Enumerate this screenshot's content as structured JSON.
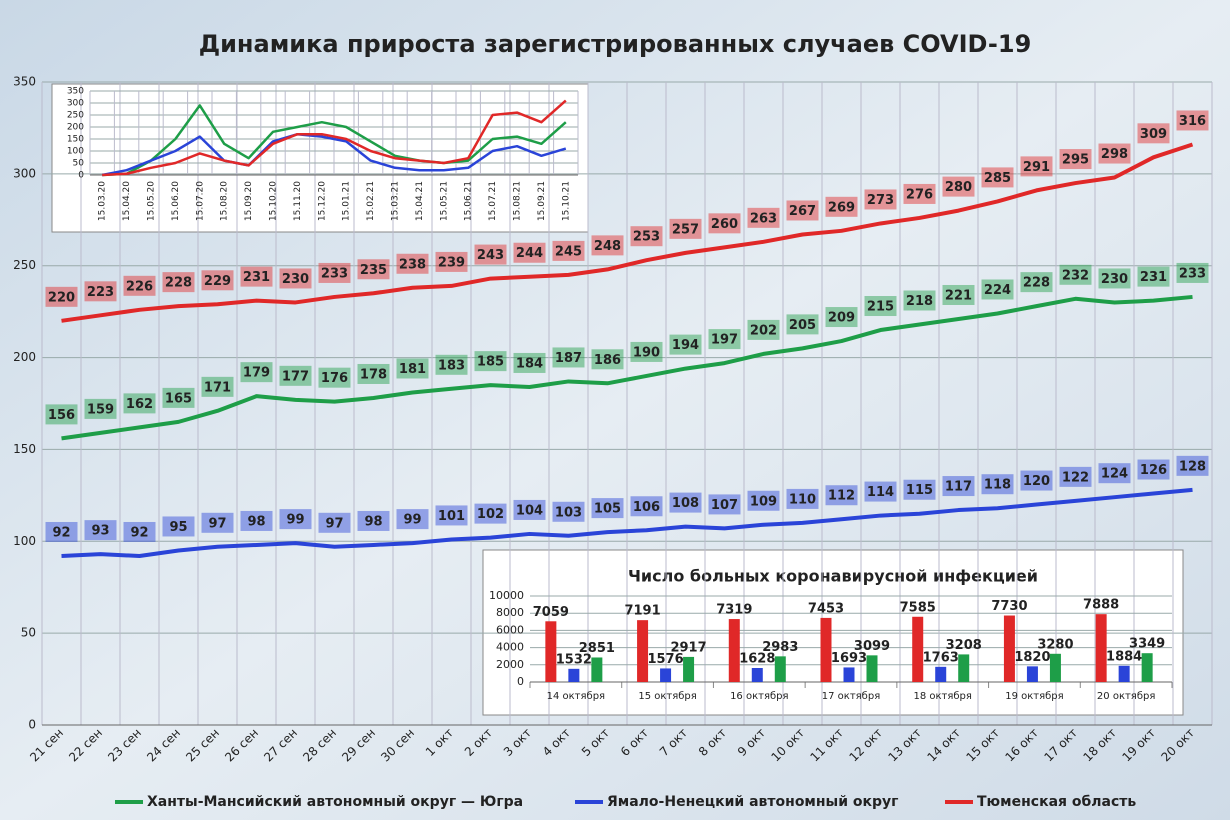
{
  "chart_data": [
    {
      "type": "line",
      "title": "Динамика прироста зарегистрированных случаев COVID-19",
      "categories": [
        "21 сен",
        "22 сен",
        "23 сен",
        "24 сен",
        "25 сен",
        "26 сен",
        "27 сен",
        "28 сен",
        "29 сен",
        "30 сен",
        "1 окт",
        "2 окт",
        "3 окт",
        "4 окт",
        "5 окт",
        "6 окт",
        "7 окт",
        "8 окт",
        "9 окт",
        "10 окт",
        "11 окт",
        "12 окт",
        "13 окт",
        "14 окт",
        "15 окт",
        "16 окт",
        "17 окт",
        "18 окт",
        "19 окт",
        "20 окт"
      ],
      "series": [
        {
          "name": "Тюменская область",
          "color": "#e02828",
          "values": [
            220,
            223,
            226,
            228,
            229,
            231,
            230,
            233,
            235,
            238,
            239,
            243,
            244,
            245,
            248,
            253,
            257,
            260,
            263,
            267,
            269,
            273,
            276,
            280,
            285,
            291,
            295,
            298,
            309,
            316
          ]
        },
        {
          "name": "Ханты-Мансийский автономный округ — Югра",
          "color": "#1e9e48",
          "values": [
            156,
            159,
            162,
            165,
            171,
            179,
            177,
            176,
            178,
            181,
            183,
            185,
            184,
            187,
            186,
            190,
            194,
            197,
            202,
            205,
            209,
            215,
            218,
            221,
            224,
            228,
            232,
            230,
            231,
            233
          ]
        },
        {
          "name": "Ямало-Ненецкий автономный округ",
          "color": "#2a44d8",
          "values": [
            92,
            93,
            92,
            95,
            97,
            98,
            99,
            97,
            98,
            99,
            101,
            102,
            104,
            103,
            105,
            106,
            108,
            107,
            109,
            110,
            112,
            114,
            115,
            117,
            118,
            120,
            122,
            124,
            126,
            128
          ]
        }
      ],
      "ylim": [
        0,
        350
      ],
      "yticks": [
        0,
        50,
        100,
        150,
        200,
        250,
        300,
        350
      ],
      "grid": true,
      "legend": "bottom"
    },
    {
      "type": "line",
      "categories": [
        "15.03.20",
        "15.04.20",
        "15.05.20",
        "15.06.20",
        "15.07.20",
        "15.08.20",
        "15.09.20",
        "15.10.20",
        "15.11.20",
        "15.12.20",
        "15.01.21",
        "15.02.21",
        "15.03.21",
        "15.04.21",
        "15.05.21",
        "15.06.21",
        "15.07.21",
        "15.08.21",
        "15.09.21",
        "15.10.21"
      ],
      "series": [
        {
          "color": "#1e9e48",
          "values": [
            0,
            5,
            60,
            150,
            290,
            130,
            70,
            180,
            200,
            220,
            200,
            140,
            80,
            60,
            50,
            60,
            150,
            160,
            130,
            220
          ]
        },
        {
          "color": "#2a44d8",
          "values": [
            0,
            20,
            60,
            100,
            160,
            60,
            40,
            140,
            170,
            160,
            140,
            60,
            30,
            20,
            20,
            30,
            100,
            120,
            80,
            110
          ]
        },
        {
          "color": "#e02828",
          "values": [
            0,
            5,
            30,
            50,
            90,
            60,
            40,
            130,
            170,
            170,
            150,
            100,
            70,
            60,
            50,
            70,
            250,
            260,
            220,
            310
          ]
        }
      ],
      "ylim": [
        0,
        350
      ],
      "yticks": [
        0,
        50,
        100,
        150,
        200,
        250,
        300,
        350
      ],
      "grid": true
    },
    {
      "type": "bar",
      "title": "Число больных коронавирусной  инфекцией",
      "categories": [
        "14 октября",
        "15 октября",
        "16 октября",
        "17 октября",
        "18 октября",
        "19 октября",
        "20 октября"
      ],
      "series": [
        {
          "color": "#e02828",
          "values": [
            7059,
            7191,
            7319,
            7453,
            7585,
            7730,
            7888
          ]
        },
        {
          "color": "#2a44d8",
          "values": [
            1532,
            1576,
            1628,
            1693,
            1763,
            1820,
            1884
          ]
        },
        {
          "color": "#1e9e48",
          "values": [
            2851,
            2917,
            2983,
            3099,
            3208,
            3280,
            3349
          ]
        }
      ],
      "ylim": [
        0,
        10000
      ],
      "yticks": [
        0,
        2000,
        4000,
        6000,
        8000,
        10000
      ],
      "grid": true
    }
  ]
}
